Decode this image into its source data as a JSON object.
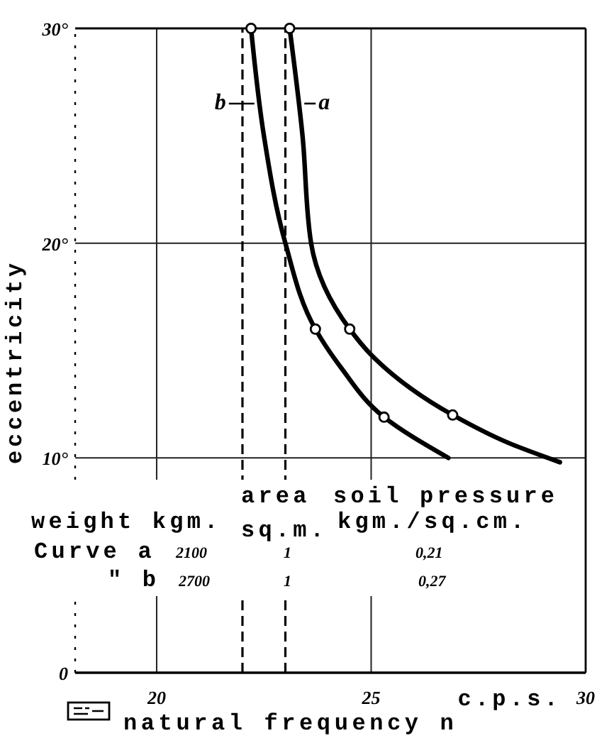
{
  "chart_data": {
    "type": "line",
    "xlabel": "natural frequency n",
    "ylabel": "eccentricity",
    "annotations": [
      "c.p.s.",
      "area",
      "soil pressure",
      "weight kgm.",
      "sq.m.",
      "kgm./sq.cm.",
      "Curve a",
      "2100",
      "1",
      "0,21",
      "\" b",
      "2700",
      "1",
      "0,27"
    ],
    "xlim": [
      18.1,
      30
    ],
    "xticks": [
      20,
      25,
      30
    ],
    "ylim": [
      0,
      30
    ],
    "yticks": [
      0,
      {
        "value": 10,
        "label": "10°"
      },
      {
        "value": 20,
        "label": "20°"
      },
      {
        "value": 30,
        "label": "30°"
      }
    ],
    "grid": true,
    "series": [
      {
        "name": "a",
        "type": "line",
        "color": "#000000",
        "marker": "none",
        "x": [
          23.1,
          23.4,
          23.6,
          24.5,
          25.0,
          26.9,
          28.2,
          29.4
        ],
        "values": [
          30,
          25,
          20,
          16,
          14.8,
          12,
          10.7,
          9.8
        ]
      },
      {
        "name": "b",
        "type": "line",
        "color": "#000000",
        "marker": "none",
        "x": [
          22.2,
          22.5,
          23.0,
          23.7,
          24.3,
          25.3,
          26.8
        ],
        "values": [
          30,
          25,
          20,
          16,
          14.2,
          11.9,
          10
        ]
      },
      {
        "type": "scatter",
        "color": "#000000",
        "marker": "circle",
        "x": [
          23.1,
          24.5,
          26.9
        ],
        "values": [
          30,
          16,
          12
        ]
      },
      {
        "type": "scatter",
        "color": "#000000",
        "marker": "circle",
        "x": [
          22.2,
          23.7,
          25.3
        ],
        "values": [
          30,
          16,
          11.9
        ]
      }
    ],
    "ref_lines": [
      {
        "axis": "x",
        "value": 22,
        "line_style": "dashed",
        "color": "#000000"
      },
      {
        "axis": "x",
        "value": 23,
        "line_style": "dashed",
        "color": "#000000"
      }
    ]
  }
}
